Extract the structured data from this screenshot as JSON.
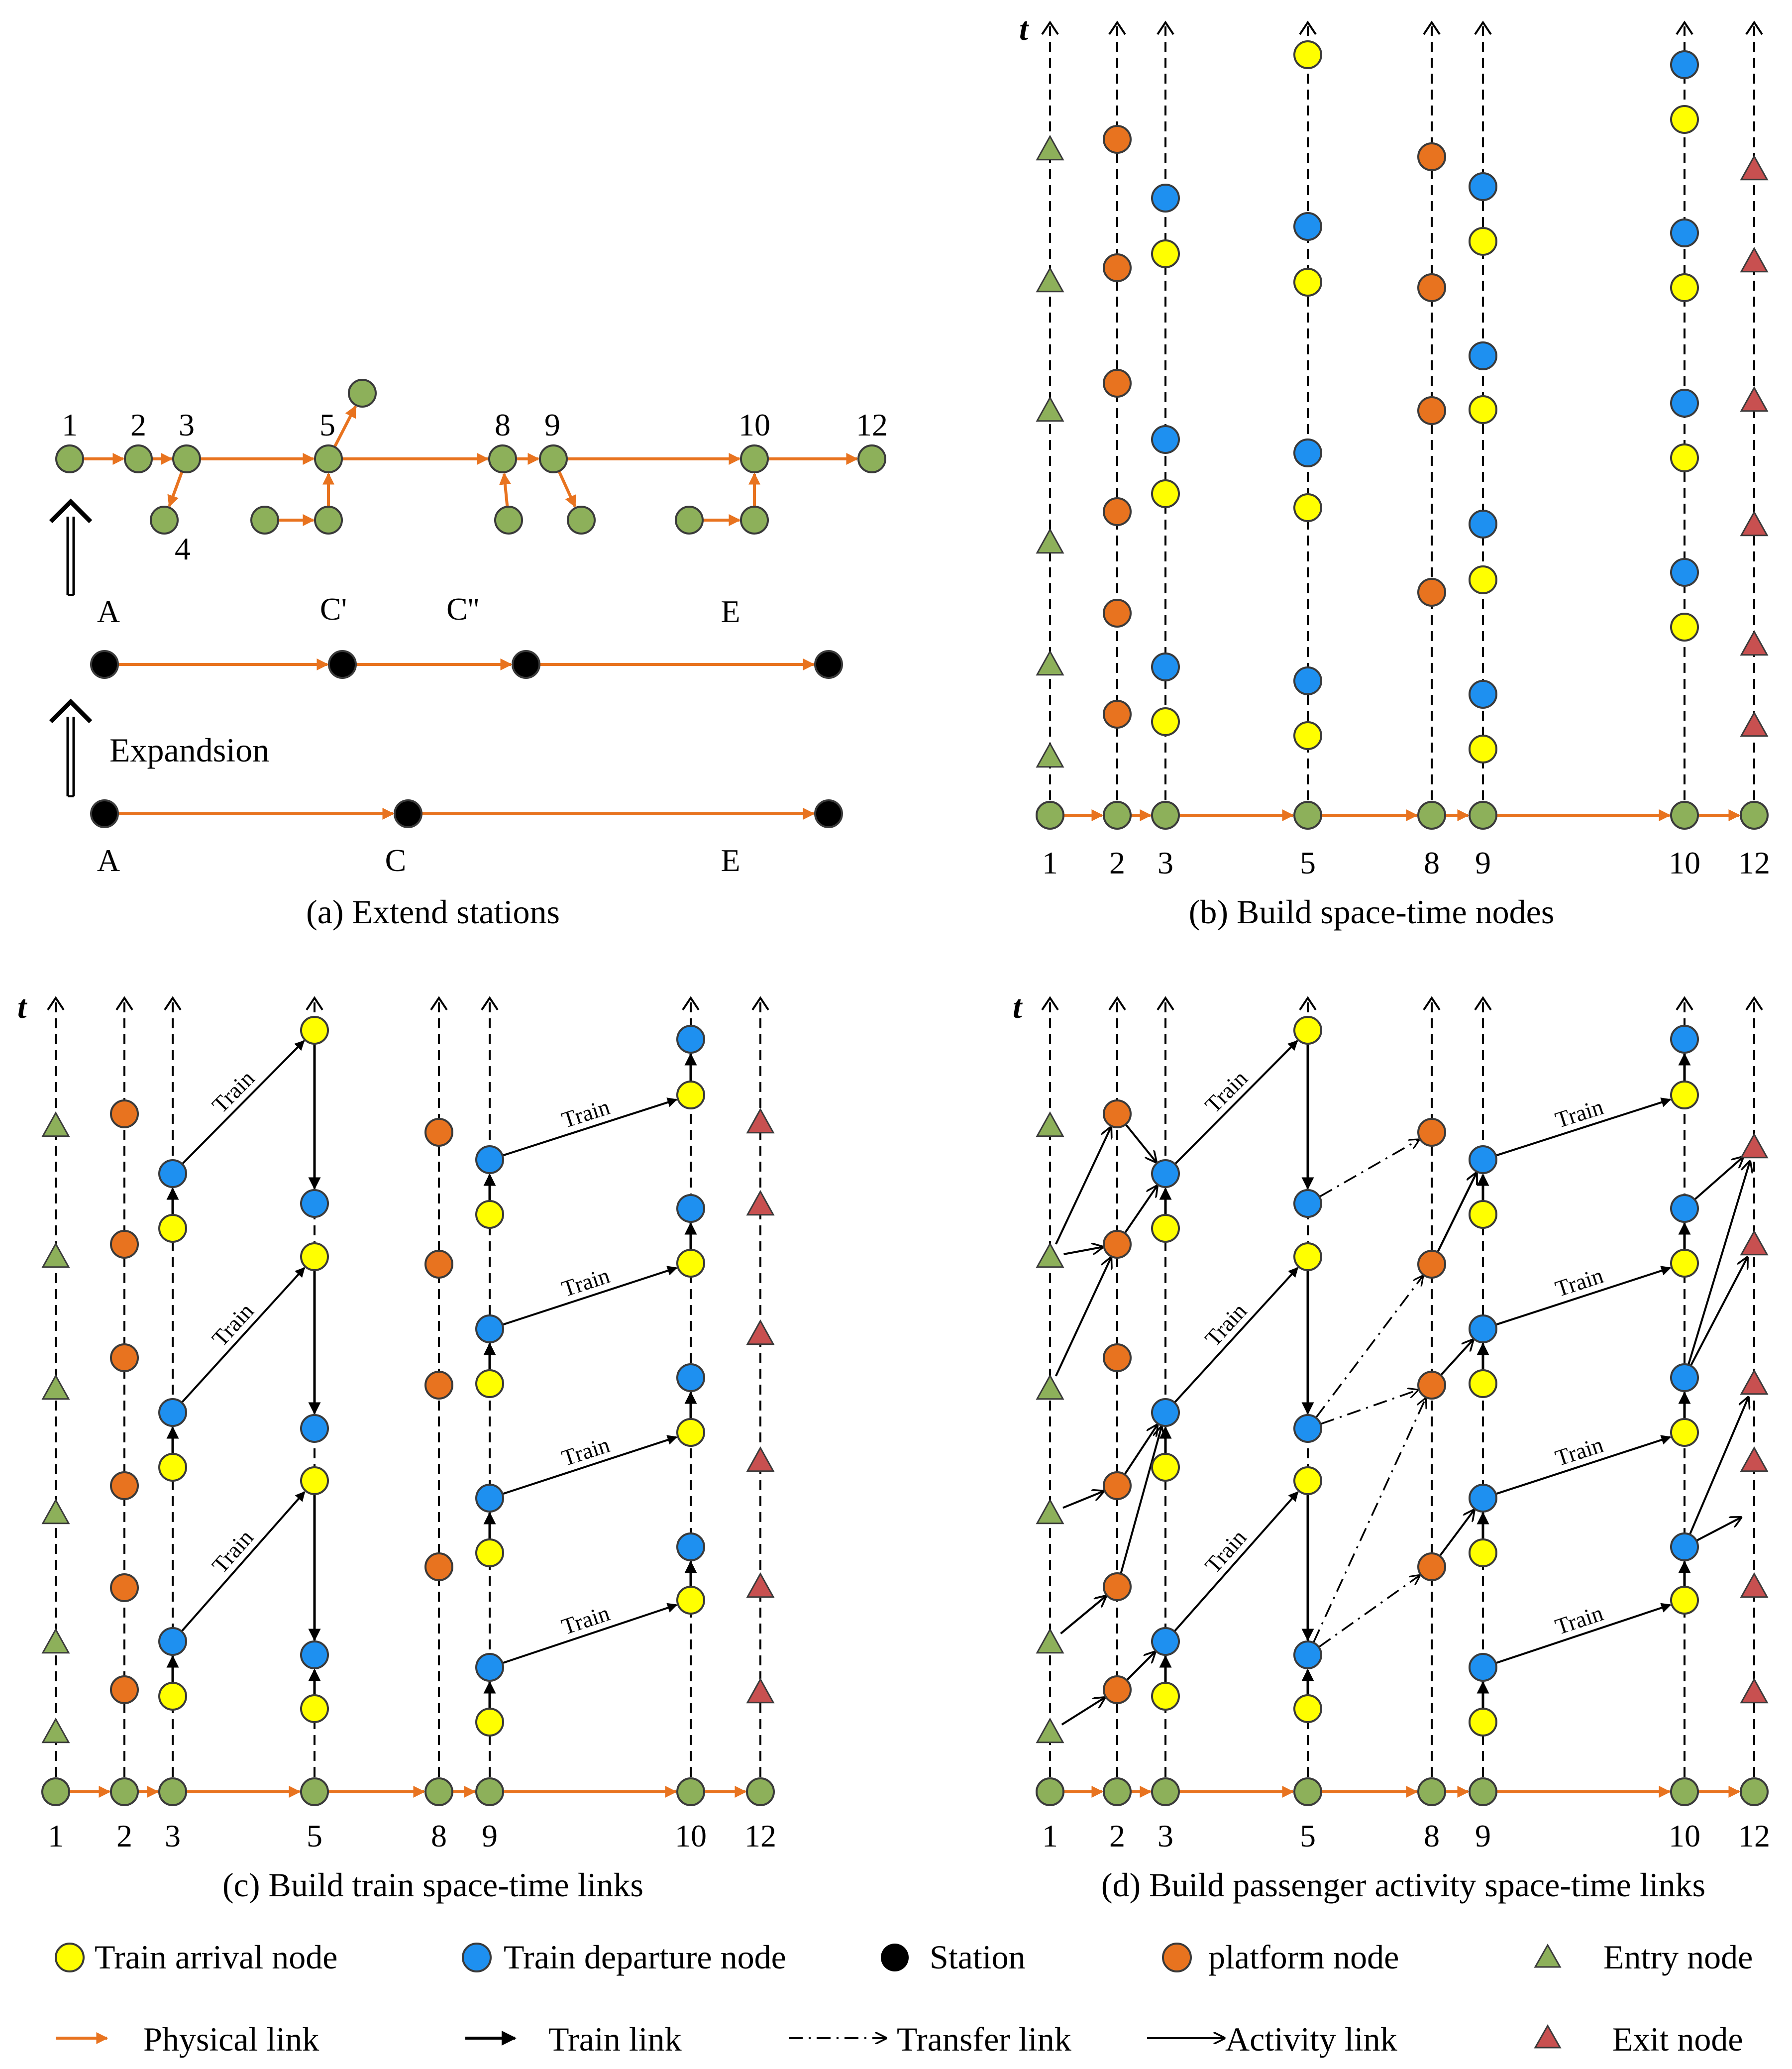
{
  "colors": {
    "green": "#8db05a",
    "orange": "#e8731f",
    "blue": "#1e90f0",
    "yellow": "#ffff00",
    "black": "#000000",
    "red": "#c85050",
    "edge": "#3a3a3a"
  },
  "panel_a": {
    "caption": "(a) Extend stations",
    "top_labels": [
      "1",
      "2",
      "3",
      "5",
      "8",
      "9",
      "10",
      "12"
    ],
    "label_4": "4",
    "mid_labels": [
      "A",
      "C'",
      "C''",
      "E"
    ],
    "bottom_labels": [
      "A",
      "C",
      "E"
    ],
    "expansion_label": "Expandsion"
  },
  "panel_b": {
    "caption": "(b) Build space-time nodes",
    "axis_label": "t",
    "stations": [
      "1",
      "2",
      "3",
      "5",
      "8",
      "9",
      "10",
      "12"
    ]
  },
  "panel_c": {
    "caption": "(c) Build train space-time links",
    "axis_label": "t",
    "stations": [
      "1",
      "2",
      "3",
      "5",
      "8",
      "9",
      "10",
      "12"
    ],
    "train_label": "Train"
  },
  "panel_d": {
    "caption": "(d) Build passenger activity space-time links",
    "axis_label": "t",
    "stations": [
      "1",
      "2",
      "3",
      "5",
      "8",
      "9",
      "10",
      "12"
    ],
    "train_label": "Train"
  },
  "legend": {
    "row1": [
      "Train arrival node",
      "Train departure node",
      "Station",
      "platform node",
      "Entry node"
    ],
    "row2": [
      "Physical link",
      "Train link",
      "Transfer link",
      "Activity link",
      "Exit node"
    ]
  }
}
